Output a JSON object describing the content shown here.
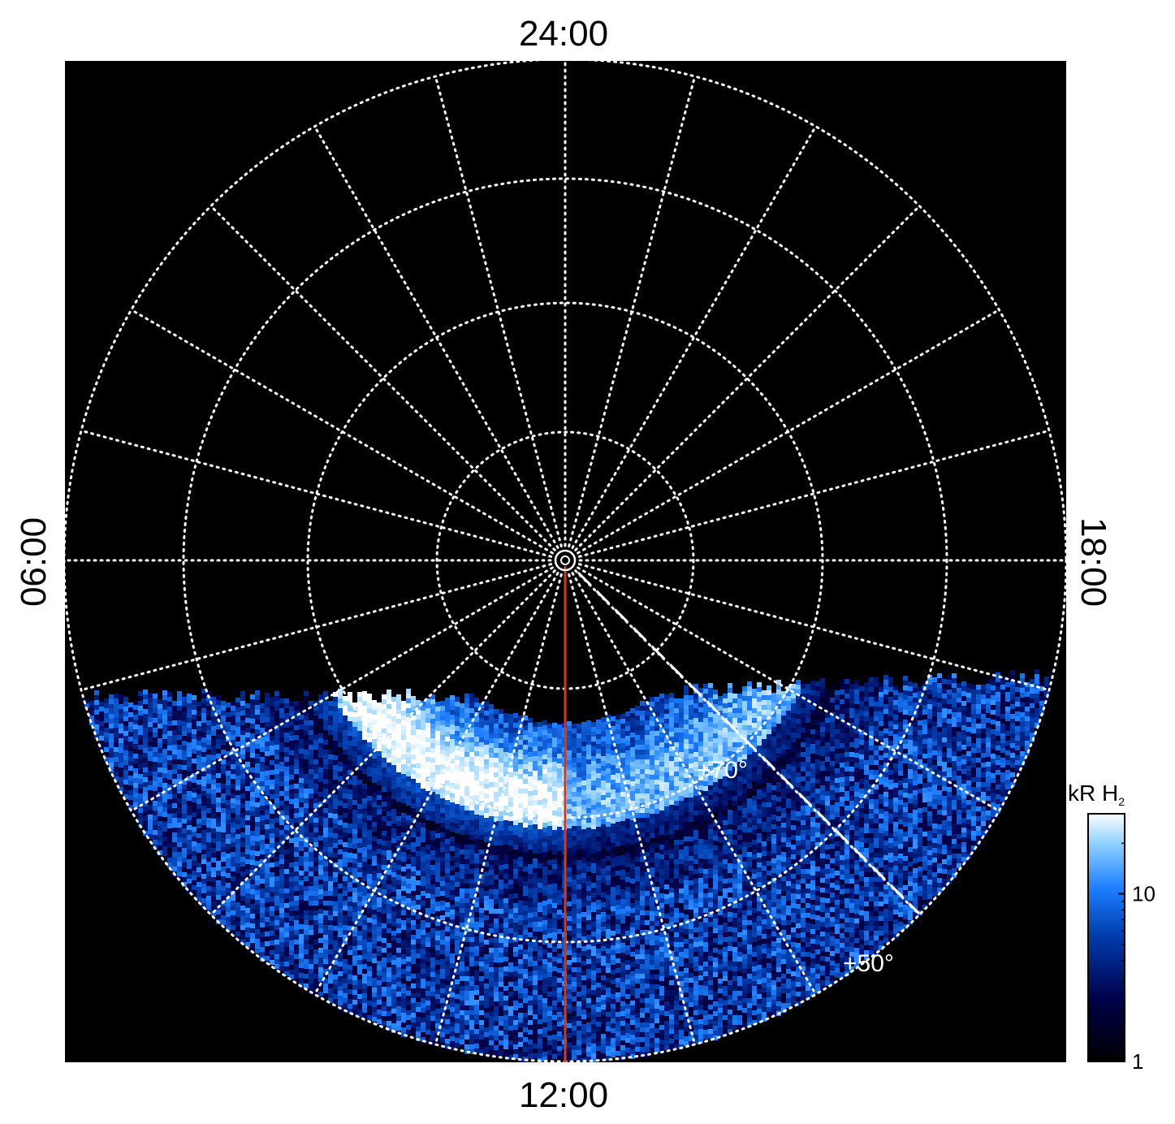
{
  "chart_data": {
    "type": "heatmap",
    "projection": "polar",
    "title": "",
    "local_time_labels": {
      "top": "24:00",
      "bottom": "12:00",
      "left": "06:00",
      "right": "18:00"
    },
    "latitude_labels": [
      "+70°",
      "+50°"
    ],
    "colorbar": {
      "title_main": "kR H",
      "title_sub": "2",
      "scale": "log",
      "range": [
        1,
        30
      ],
      "tick_labels": [
        "1",
        "10"
      ],
      "tick_values": [
        1,
        10
      ],
      "colors": [
        "#000000",
        "#00004a",
        "#003aa8",
        "#1e7fff",
        "#8fd0ff",
        "#ffffff"
      ]
    },
    "grid": true,
    "colors": {
      "background": "#000000",
      "grid": "#ffffff",
      "noon_meridian": "#d23a14",
      "figure_background": "#ffffff"
    }
  }
}
